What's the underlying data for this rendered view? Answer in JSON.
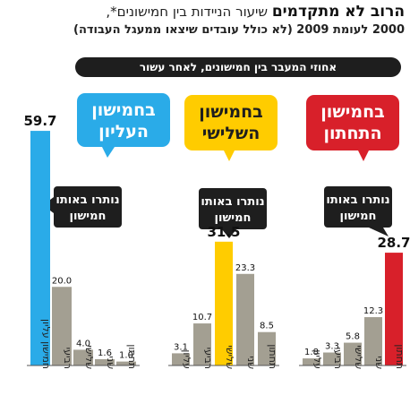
{
  "title_bold": "הרוב לא מתקדמים",
  "title_rest": " שיעור הניידות בין חמישונים*,",
  "subtitle": "2000 לעומת 2009 (לא כולל עובדים שיצאו ממעגל העבודה)",
  "band_label": "אחוזי המעבר בין חמישונים, לאחר עשור",
  "colors": {
    "gray": "#a39f92",
    "top": "#2aabe8",
    "middle": "#ffcc00",
    "bottom": "#d8202a",
    "dark": "#1e1e1e"
  },
  "chart_data": [
    {
      "type": "bar",
      "panel": "top",
      "bubble_label_lines": [
        "בחמישון",
        "העליון"
      ],
      "stay_label_lines": [
        "נותרו באותו",
        "חמישון"
      ],
      "categories": [
        "חמישון עליון",
        "רביעי",
        "שלישי",
        "שני",
        "תחתון"
      ],
      "values": [
        59.7,
        20.0,
        4.0,
        1.6,
        1.0
      ],
      "value_labels": [
        "59.7",
        "20.0",
        "4.0",
        "1.6",
        "1.0"
      ],
      "highlight_index": 0,
      "ylim": [
        0,
        62
      ]
    },
    {
      "type": "bar",
      "panel": "middle",
      "bubble_label_lines": [
        "בחמישון",
        "השלישי"
      ],
      "stay_label_lines": [
        "נותרו באותו",
        "חמישון"
      ],
      "categories": [
        "עליון",
        "רביעי",
        "שלישי",
        "שני",
        "תחתון"
      ],
      "values": [
        3.1,
        10.7,
        31.5,
        23.3,
        8.5
      ],
      "value_labels": [
        "3.1",
        "10.7",
        "31.5",
        "23.3",
        "8.5"
      ],
      "highlight_index": 2,
      "ylim": [
        0,
        62
      ]
    },
    {
      "type": "bar",
      "panel": "bottom",
      "bubble_label_lines": [
        "בחמישון",
        "התחתון"
      ],
      "stay_label_lines": [
        "נותרו באותו",
        "חמישון"
      ],
      "categories": [
        "עליון",
        "רביעי",
        "שלישי",
        "שני",
        "תחתון"
      ],
      "values": [
        1.8,
        3.3,
        5.8,
        12.3,
        28.7
      ],
      "value_labels": [
        "1.8",
        "3.3",
        "5.8",
        "12.3",
        "28.7"
      ],
      "highlight_index": 4,
      "ylim": [
        0,
        62
      ]
    }
  ]
}
